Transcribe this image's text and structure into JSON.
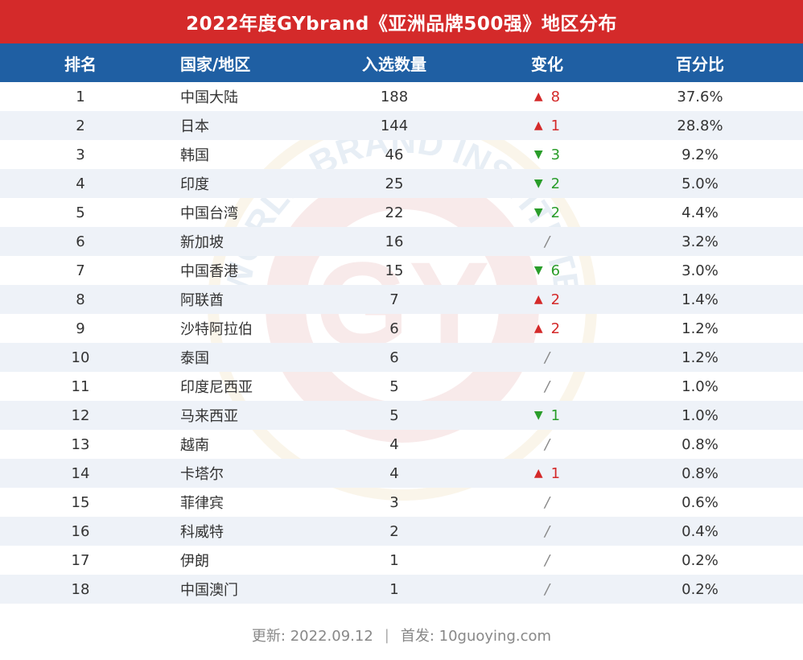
{
  "title": "2022年度GYbrand《亚洲品牌500强》地区分布",
  "headers": {
    "rank": "排名",
    "region": "国家/地区",
    "count": "入选数量",
    "change": "变化",
    "pct": "百分比"
  },
  "rows": [
    {
      "rank": "1",
      "region": "中国大陆",
      "count": "188",
      "dir": "up",
      "change": "8",
      "pct": "37.6%"
    },
    {
      "rank": "2",
      "region": "日本",
      "count": "144",
      "dir": "up",
      "change": "1",
      "pct": "28.8%"
    },
    {
      "rank": "3",
      "region": "韩国",
      "count": "46",
      "dir": "down",
      "change": "3",
      "pct": "9.2%"
    },
    {
      "rank": "4",
      "region": "印度",
      "count": "25",
      "dir": "down",
      "change": "2",
      "pct": "5.0%"
    },
    {
      "rank": "5",
      "region": "中国台湾",
      "count": "22",
      "dir": "down",
      "change": "2",
      "pct": "4.4%"
    },
    {
      "rank": "6",
      "region": "新加坡",
      "count": "16",
      "dir": "none",
      "change": "/",
      "pct": "3.2%"
    },
    {
      "rank": "7",
      "region": "中国香港",
      "count": "15",
      "dir": "down",
      "change": "6",
      "pct": "3.0%"
    },
    {
      "rank": "8",
      "region": "阿联酋",
      "count": "7",
      "dir": "up",
      "change": "2",
      "pct": "1.4%"
    },
    {
      "rank": "9",
      "region": "沙特阿拉伯",
      "count": "6",
      "dir": "up",
      "change": "2",
      "pct": "1.2%"
    },
    {
      "rank": "10",
      "region": "泰国",
      "count": "6",
      "dir": "none",
      "change": "/",
      "pct": "1.2%"
    },
    {
      "rank": "11",
      "region": "印度尼西亚",
      "count": "5",
      "dir": "none",
      "change": "/",
      "pct": "1.0%"
    },
    {
      "rank": "12",
      "region": "马来西亚",
      "count": "5",
      "dir": "down",
      "change": "1",
      "pct": "1.0%"
    },
    {
      "rank": "13",
      "region": "越南",
      "count": "4",
      "dir": "none",
      "change": "/",
      "pct": "0.8%"
    },
    {
      "rank": "14",
      "region": "卡塔尔",
      "count": "4",
      "dir": "up",
      "change": "1",
      "pct": "0.8%"
    },
    {
      "rank": "15",
      "region": "菲律宾",
      "count": "3",
      "dir": "none",
      "change": "/",
      "pct": "0.6%"
    },
    {
      "rank": "16",
      "region": "科威特",
      "count": "2",
      "dir": "none",
      "change": "/",
      "pct": "0.4%"
    },
    {
      "rank": "17",
      "region": "伊朗",
      "count": "1",
      "dir": "none",
      "change": "/",
      "pct": "0.2%"
    },
    {
      "rank": "18",
      "region": "中国澳门",
      "count": "1",
      "dir": "none",
      "change": "/",
      "pct": "0.2%"
    }
  ],
  "arrows": {
    "up": "▲",
    "down": "▼"
  },
  "watermark": {
    "center_text": "GY",
    "ring_text": "WORLD BRAND INSTITUTE"
  },
  "footer": {
    "updated": "更新: 2022.09.12",
    "separator": "|",
    "source": "首发: 10guoying.com"
  },
  "colors": {
    "title_bg": "#d42a2a",
    "header_bg": "#1f5fa3",
    "alt_row_bg": "#eef2f8",
    "up": "#d42a2a",
    "down": "#2a9d2a"
  }
}
